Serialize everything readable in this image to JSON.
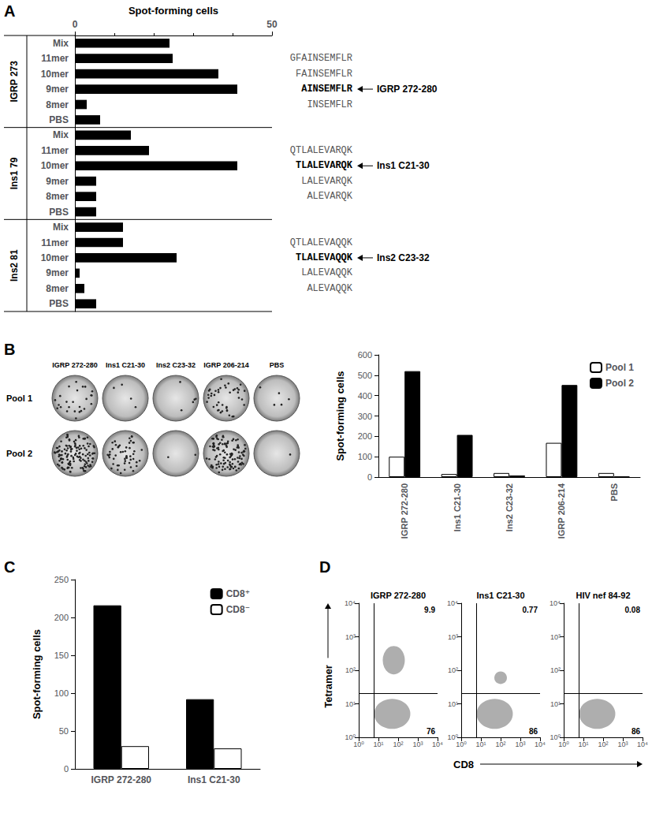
{
  "chart_data": [
    {
      "panel_label": "A",
      "type": "bar",
      "orientation": "horizontal",
      "x_label": "Spot-forming cells",
      "xlim": [
        0,
        50
      ],
      "xticks": [
        0,
        50
      ],
      "color": "#000000",
      "grid": false,
      "groups": [
        {
          "label": "IGRP 273",
          "categories": [
            "Mix",
            "11mer",
            "10mer",
            "9mer",
            "8mer",
            "PBS"
          ],
          "values": [
            24,
            24.8,
            36.4,
            41.2,
            3,
            6.4
          ],
          "sequences": [
            null,
            "GFAINSEMFLR",
            "FAINSEMFLR",
            "AINSEMFLR",
            "INSEMFLR",
            null
          ],
          "annotation": {
            "category": "9mer",
            "text": "IGRP 272-280"
          }
        },
        {
          "label": "Ins1 79",
          "categories": [
            "Mix",
            "11mer",
            "10mer",
            "9mer",
            "8mer",
            "PBS"
          ],
          "values": [
            14.2,
            18.8,
            41.2,
            5.4,
            5.4,
            5.4
          ],
          "sequences": [
            null,
            "QTLALEVARQK",
            "TLALEVARQK",
            "LALEVARQK",
            "ALEVARQK",
            null
          ],
          "annotation": {
            "category": "10mer",
            "text": "Ins1 C21-30"
          }
        },
        {
          "label": "Ins2 81",
          "categories": [
            "Mix",
            "11mer",
            "10mer",
            "9mer",
            "8mer",
            "PBS"
          ],
          "values": [
            12.2,
            12.2,
            25.8,
            1.2,
            2.4,
            5.4
          ],
          "sequences": [
            null,
            "QTLALEVAQQK",
            "TLALEVAQQK",
            "LALEVAQQK",
            "ALEVAQQK",
            null
          ],
          "annotation": {
            "category": "10mer",
            "text": "Ins2 C23-32"
          }
        }
      ]
    },
    {
      "panel_label": "B",
      "type": "bar",
      "y_label": "Spot-forming cells",
      "categories": [
        "IGRP 272-280",
        "Ins1 C21-30",
        "Ins2 C23-32",
        "IGRP 206-214",
        "PBS"
      ],
      "series": [
        {
          "name": "Pool 1",
          "color": "#ffffff",
          "values": [
            100,
            15,
            20,
            168,
            20
          ]
        },
        {
          "name": "Pool 2",
          "color": "#000000",
          "values": [
            520,
            207,
            8,
            452,
            3
          ]
        }
      ],
      "ylim": [
        0,
        600
      ],
      "yticks": [
        0,
        100,
        200,
        300,
        400,
        500,
        600
      ],
      "grid": false,
      "legend": "top-right"
    },
    {
      "panel_label": "C",
      "type": "bar",
      "y_label": "Spot-forming cells",
      "categories": [
        "IGRP 272-280",
        "Ins1 C21-30"
      ],
      "series": [
        {
          "name": "CD8⁺",
          "color": "#000000",
          "values": [
            216,
            92
          ]
        },
        {
          "name": "CD8⁻",
          "color": "#ffffff",
          "values": [
            30,
            27
          ]
        }
      ],
      "ylim": [
        0,
        250
      ],
      "yticks": [
        0,
        50,
        100,
        150,
        200,
        250
      ],
      "grid": false,
      "legend": "top-right"
    },
    {
      "panel_label": "D",
      "type": "scatter",
      "log": true,
      "x_label": "CD8",
      "y_label": "Tetramer",
      "grid": false,
      "xlim": [
        1,
        10000
      ],
      "xticks": [
        {
          "value": 1,
          "label": "10⁰"
        },
        {
          "value": 10,
          "label": "10¹"
        },
        {
          "value": 100,
          "label": "10²"
        },
        {
          "value": 1000,
          "label": "10³"
        },
        {
          "value": 10000,
          "label": "10⁴"
        }
      ],
      "ylim": [
        1,
        10000
      ],
      "yticks": [
        {
          "value": 1,
          "label": "10⁰"
        },
        {
          "value": 10,
          "label": "10¹"
        },
        {
          "value": 100,
          "label": "10²"
        },
        {
          "value": 1000,
          "label": "10³"
        },
        {
          "value": 10000,
          "label": "10⁴"
        }
      ],
      "gate": {
        "x": 6,
        "y": 20
      },
      "plots": [
        {
          "title": "IGRP 272-280",
          "clusters": [
            {
              "x": 50,
              "y": 5
            },
            {
              "x": 60,
              "y": 200
            }
          ],
          "upper_right": 9.9,
          "lower_right": 76
        },
        {
          "title": "Ins1 C21-30",
          "clusters": [
            {
              "x": 50,
              "y": 5
            },
            {
              "x": 100,
              "y": 60
            }
          ],
          "upper_right": 0.77,
          "lower_right": 86
        },
        {
          "title": "HIV nef 84-92",
          "clusters": [
            {
              "x": 50,
              "y": 5
            }
          ],
          "upper_right": 0.08,
          "lower_right": 86
        }
      ]
    }
  ]
}
